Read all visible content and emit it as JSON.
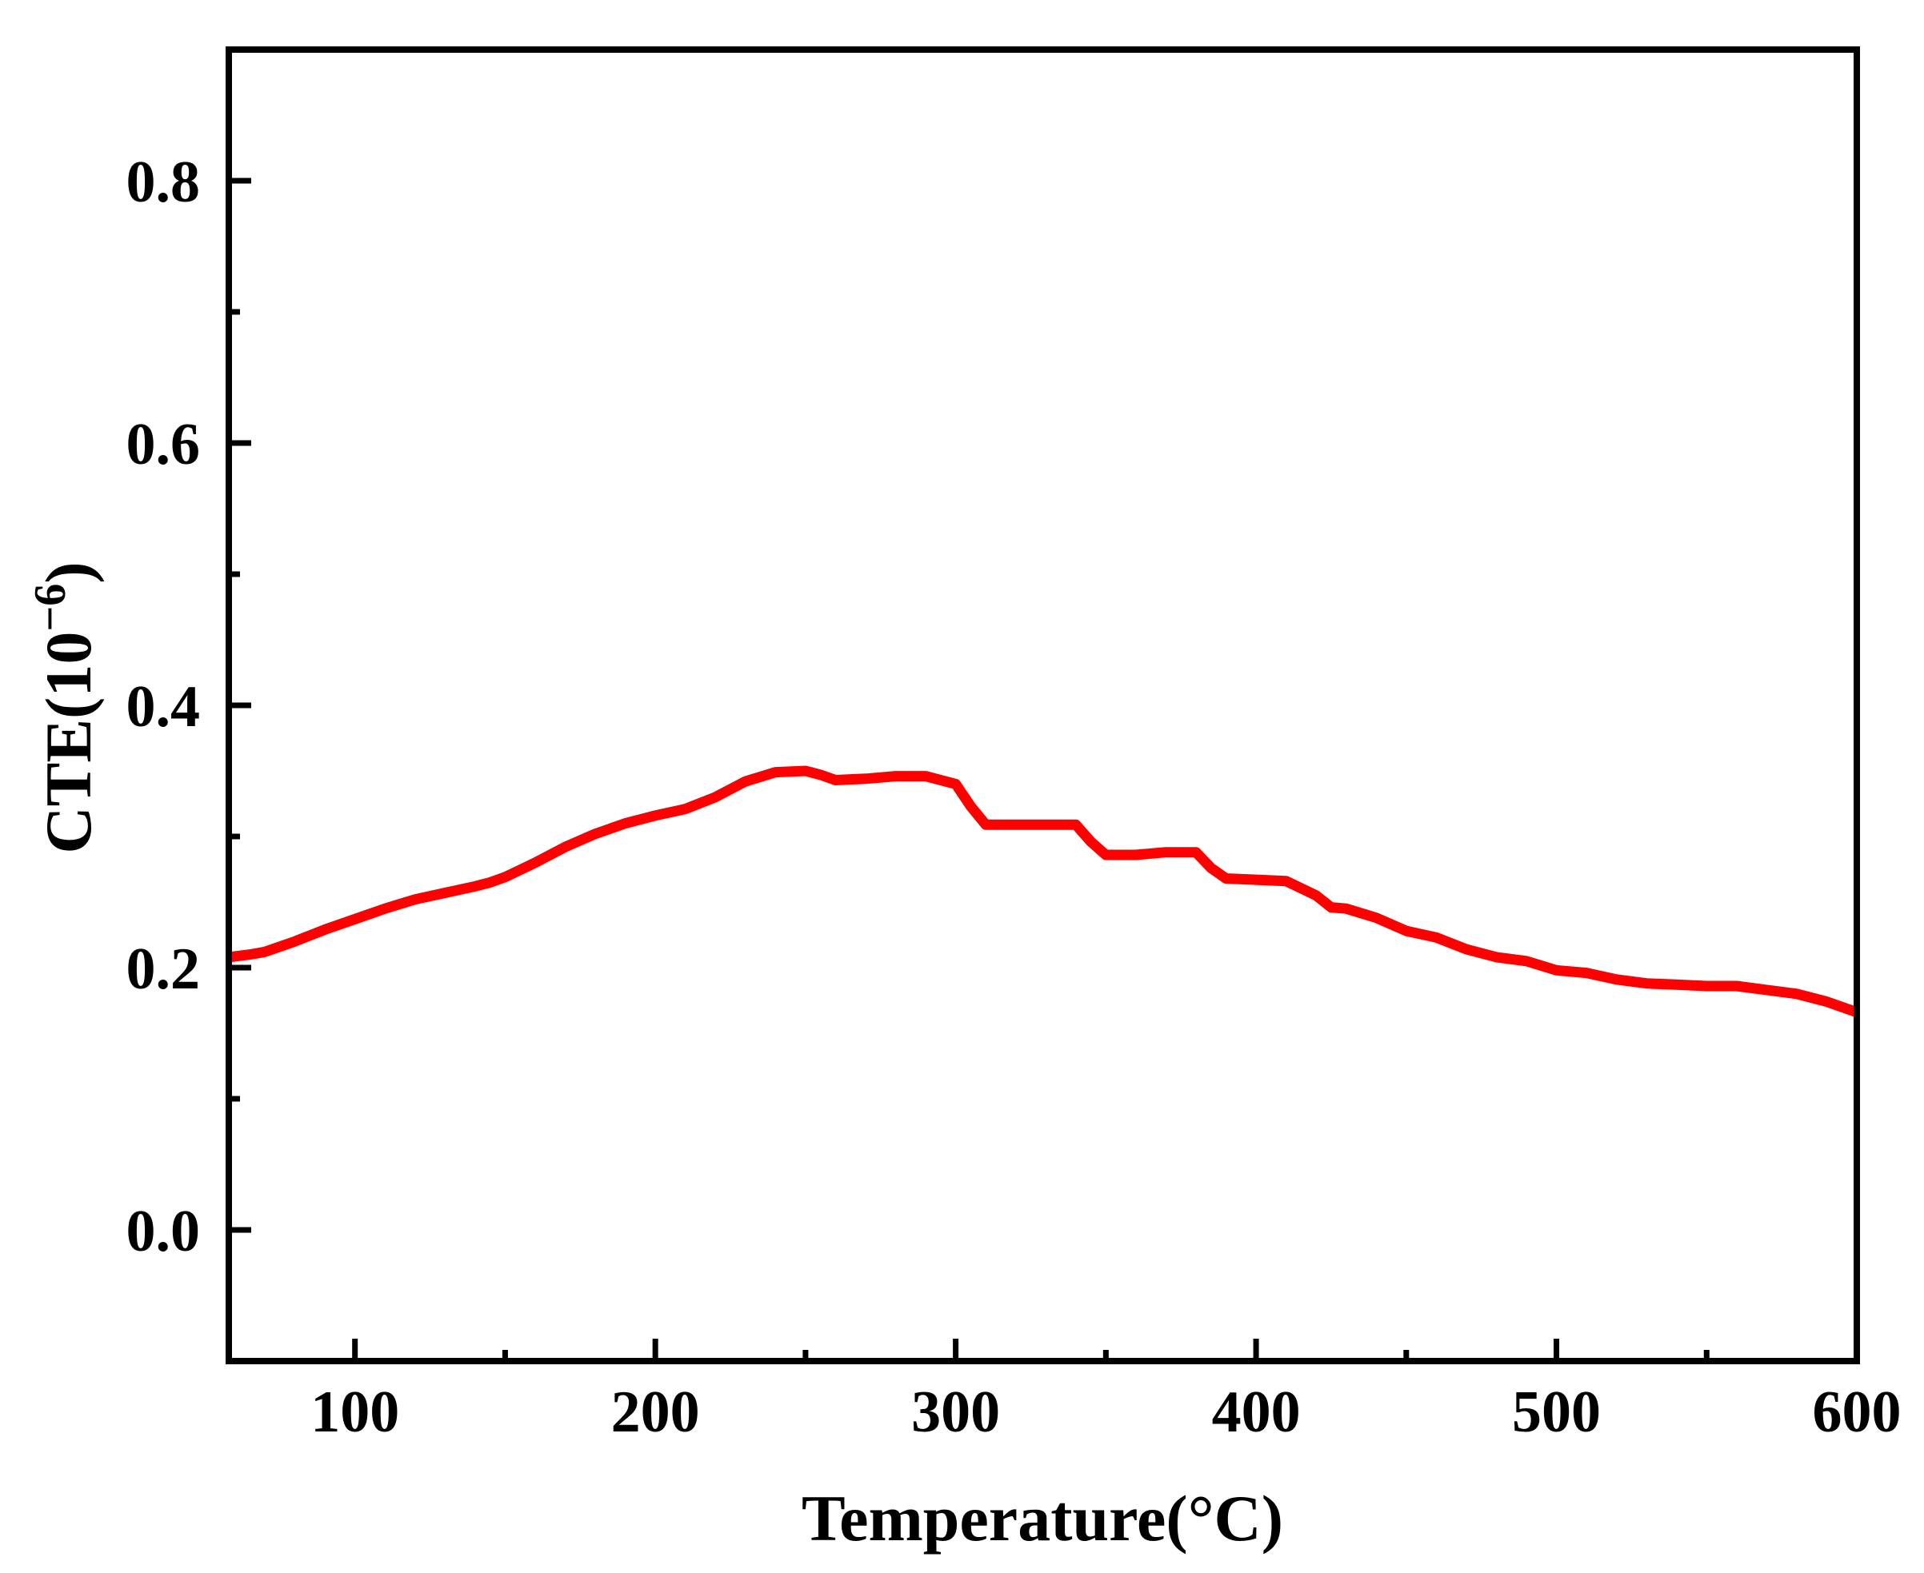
{
  "chart_data": {
    "type": "line",
    "title": "",
    "xlabel": "Temperature(°C)",
    "ylabel_base": "CTE(10",
    "ylabel_exp": "−6",
    "ylabel_tail": ")",
    "xlim": [
      58,
      600
    ],
    "ylim": [
      -0.1,
      0.9
    ],
    "x_ticks": [
      100,
      200,
      300,
      400,
      500,
      600
    ],
    "x_tick_labels": [
      "100",
      "200",
      "300",
      "400",
      "500",
      "600"
    ],
    "x_minor_ticks": [
      150,
      250,
      350,
      450,
      550
    ],
    "y_ticks": [
      0.0,
      0.2,
      0.4,
      0.6,
      0.8
    ],
    "y_tick_labels": [
      "0.0",
      "0.2",
      "0.4",
      "0.6",
      "0.8"
    ],
    "y_minor_ticks": [
      0.1,
      0.3,
      0.5,
      0.7
    ],
    "grid": false,
    "legend": "none",
    "series": [
      {
        "color": "#ff0000",
        "x": [
          58,
          65,
          70,
          80,
          90,
          100,
          110,
          120,
          130,
          140,
          145,
          150,
          160,
          170,
          180,
          190,
          200,
          210,
          220,
          230,
          240,
          250,
          255,
          260,
          270,
          280,
          290,
          300,
          305,
          310,
          320,
          330,
          340,
          345,
          350,
          360,
          370,
          380,
          385,
          390,
          400,
          410,
          420,
          425,
          430,
          440,
          450,
          460,
          470,
          480,
          490,
          500,
          510,
          520,
          530,
          540,
          550,
          560,
          570,
          580,
          590,
          600
        ],
        "y": [
          0.208,
          0.21,
          0.212,
          0.22,
          0.229,
          0.237,
          0.245,
          0.252,
          0.257,
          0.262,
          0.265,
          0.269,
          0.28,
          0.292,
          0.302,
          0.31,
          0.316,
          0.321,
          0.33,
          0.342,
          0.349,
          0.35,
          0.347,
          0.343,
          0.344,
          0.346,
          0.346,
          0.34,
          0.323,
          0.309,
          0.309,
          0.309,
          0.309,
          0.296,
          0.286,
          0.286,
          0.288,
          0.288,
          0.276,
          0.268,
          0.267,
          0.266,
          0.255,
          0.246,
          0.245,
          0.238,
          0.228,
          0.223,
          0.214,
          0.208,
          0.205,
          0.198,
          0.196,
          0.191,
          0.188,
          0.187,
          0.186,
          0.186,
          0.183,
          0.18,
          0.174,
          0.166
        ]
      }
    ]
  }
}
